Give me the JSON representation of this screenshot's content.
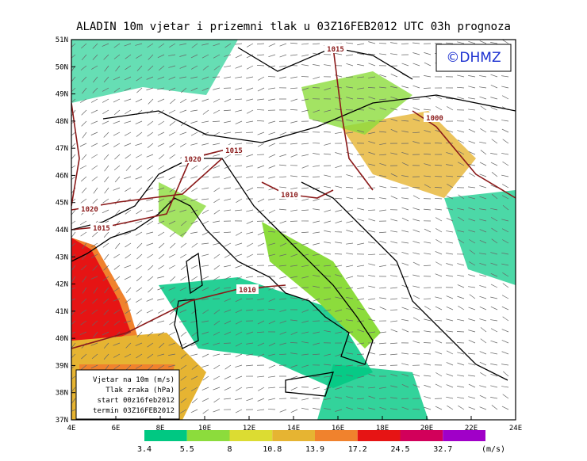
{
  "title": "ALADIN 10m vjetar i prizemni tlak u 03Z16FEB2012 UTC 03h prognoza",
  "logo": "©DHMZ",
  "lat_labels": [
    "51N",
    "50N",
    "49N",
    "48N",
    "47N",
    "46N",
    "45N",
    "44N",
    "43N",
    "42N",
    "41N",
    "40N",
    "39N",
    "38N",
    "37N"
  ],
  "lon_labels": [
    "4E",
    "6E",
    "8E",
    "10E",
    "12E",
    "14E",
    "16E",
    "18E",
    "20E",
    "22E",
    "24E"
  ],
  "isobar_labels": [
    "1015",
    "1000",
    "1015",
    "1020",
    "1010",
    "1020",
    "1015",
    "1010"
  ],
  "info_box": [
    "Vjetar na 10m (m/s)",
    "Tlak zraka (hPa)",
    "start 00z16feb2012",
    "termin 03Z16FEB2012"
  ],
  "colorbar": {
    "labels": [
      "3.4",
      "5.5",
      "8",
      "10.8",
      "13.9",
      "17.2",
      "24.5",
      "32.7"
    ],
    "colors": [
      "#00c882",
      "#8cdc3c",
      "#dcdc32",
      "#e6b432",
      "#f0822d",
      "#e61414",
      "#d2005a",
      "#a000c8"
    ],
    "unit": "(m/s)"
  }
}
